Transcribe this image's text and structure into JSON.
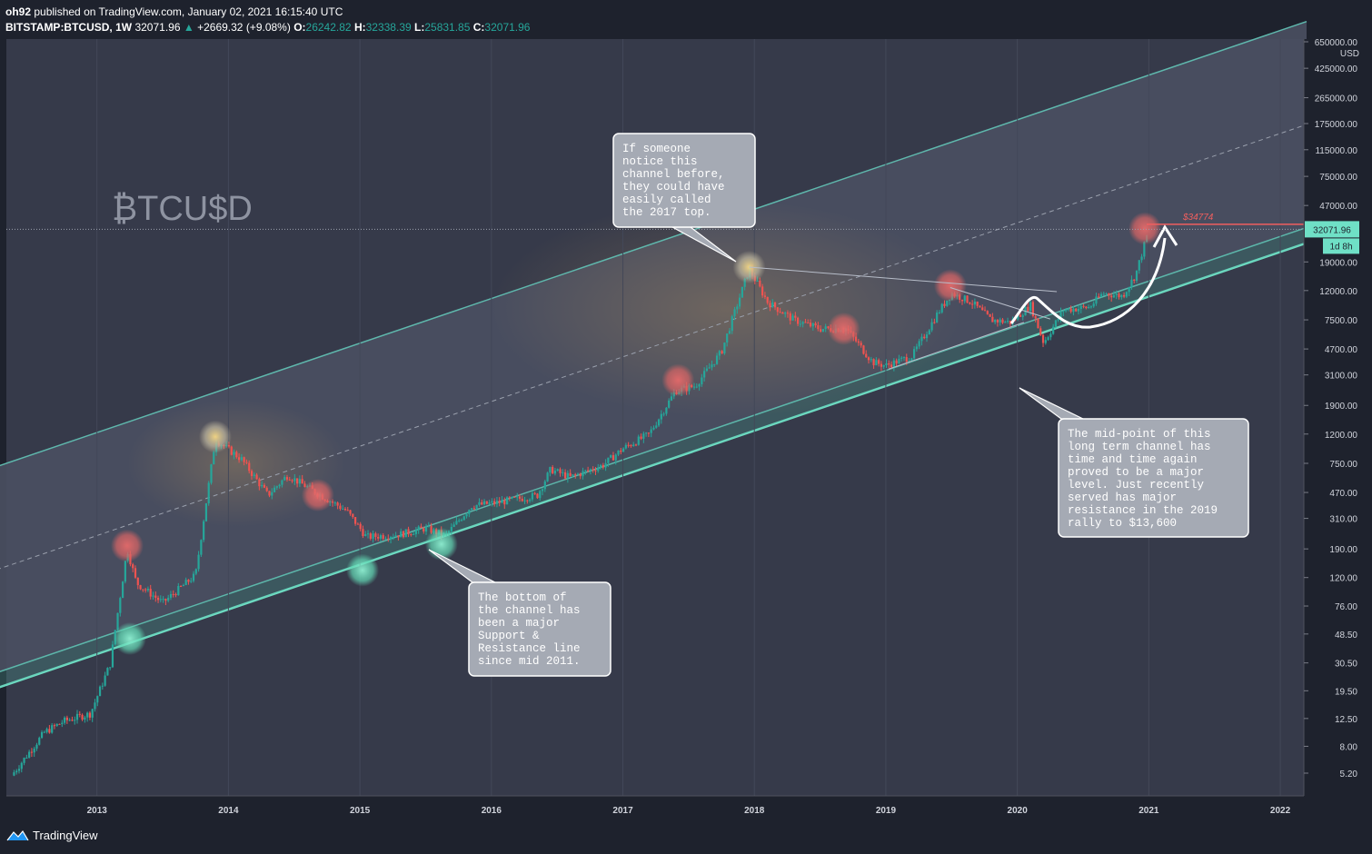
{
  "header": {
    "publisher": "oh92",
    "published_text": "published on TradingView.com, January 02, 2021 16:15:40 UTC",
    "symbol": "BITSTAMP:BTCUSD, 1W",
    "last": "32071.96",
    "change": "+2669.32 (+9.08%)",
    "open_label": "O:",
    "open": "26242.82",
    "high_label": "H:",
    "high": "32338.39",
    "low_label": "L:",
    "low": "25831.85",
    "close_label": "C:",
    "close": "32071.96"
  },
  "watermark": "BTCUSD",
  "price_axis": {
    "currency": "USD",
    "last_price_label": "32071.96",
    "countdown": "1d 8h",
    "target_label": "$34774"
  },
  "annotations": {
    "top_callout": "If someone\nnotice this\nchannel before,\nthey could have\neasily called\nthe 2017 top.",
    "bottom_callout": "The bottom of\nthe channel has\nbeen a major\nSupport &\nResistance line\nsince mid 2011.",
    "mid_callout": "The mid-point of this\nlong term channel has\ntime and time again\nproved to be a major\nlevel. Just recently\nserved has major\nresistance in the 2019\nrally to $13,600"
  },
  "footer": {
    "brand": "TradingView"
  },
  "colors": {
    "up": "#26a69a",
    "down": "#ef5350",
    "channel": "#5fb8ad",
    "bottom_line": "#6fdcc3",
    "target": "#f05f5f"
  },
  "chart_data": {
    "type": "candlestick",
    "scale": "log",
    "interval": "1W",
    "x_ticks": [
      "2013",
      "2014",
      "2015",
      "2016",
      "2017",
      "2018",
      "2019",
      "2020",
      "2021",
      "2022"
    ],
    "y_ticks": [
      5.2,
      8.0,
      12.5,
      19.5,
      30.5,
      48.5,
      76.0,
      120.0,
      190.0,
      310.0,
      470.0,
      750.0,
      1200.0,
      1900.0,
      3100.0,
      4700.0,
      7500.0,
      12000.0,
      19000.0,
      30000.0,
      47000.0,
      75000.0,
      115000.0,
      175000.0,
      265000.0,
      425000.0,
      650000.0
    ],
    "y_tick_labels": [
      "5.20",
      "8.00",
      "12.50",
      "19.50",
      "30.50",
      "48.50",
      "76.00",
      "120.00",
      "190.00",
      "310.00",
      "470.00",
      "750.00",
      "1200.00",
      "1900.00",
      "3100.00",
      "4700.00",
      "7500.00",
      "12000.00",
      "19000.00",
      "",
      "47000.00",
      "75000.00",
      "115000.00",
      "175000.00",
      "265000.00",
      "425000.00",
      "650000.00"
    ],
    "price_path": [
      [
        2012.35,
        5.0
      ],
      [
        2012.6,
        10
      ],
      [
        2012.75,
        12
      ],
      [
        2012.95,
        13.5
      ],
      [
        2013.1,
        30
      ],
      [
        2013.23,
        190
      ],
      [
        2013.3,
        110
      ],
      [
        2013.5,
        80
      ],
      [
        2013.75,
        125
      ],
      [
        2013.9,
        1100
      ],
      [
        2014.1,
        800
      ],
      [
        2014.3,
        450
      ],
      [
        2014.45,
        620
      ],
      [
        2014.7,
        450
      ],
      [
        2014.9,
        350
      ],
      [
        2015.05,
        230
      ],
      [
        2015.3,
        240
      ],
      [
        2015.5,
        265
      ],
      [
        2015.65,
        235
      ],
      [
        2015.85,
        380
      ],
      [
        2016.05,
        400
      ],
      [
        2016.35,
        450
      ],
      [
        2016.45,
        680
      ],
      [
        2016.6,
        600
      ],
      [
        2016.85,
        730
      ],
      [
        2017.0,
        950
      ],
      [
        2017.2,
        1200
      ],
      [
        2017.4,
        2400
      ],
      [
        2017.55,
        2600
      ],
      [
        2017.75,
        4500
      ],
      [
        2017.96,
        17000
      ],
      [
        2018.1,
        10000
      ],
      [
        2018.3,
        7500
      ],
      [
        2018.5,
        6500
      ],
      [
        2018.7,
        6500
      ],
      [
        2018.9,
        3800
      ],
      [
        2019.0,
        3600
      ],
      [
        2019.2,
        4200
      ],
      [
        2019.4,
        8500
      ],
      [
        2019.5,
        11500
      ],
      [
        2019.65,
        10000
      ],
      [
        2019.8,
        7500
      ],
      [
        2019.95,
        7200
      ],
      [
        2020.1,
        9500
      ],
      [
        2020.2,
        5200
      ],
      [
        2020.35,
        8800
      ],
      [
        2020.55,
        9200
      ],
      [
        2020.65,
        11500
      ],
      [
        2020.8,
        11000
      ],
      [
        2020.9,
        15500
      ],
      [
        2021.0,
        32071.96
      ]
    ],
    "channel": {
      "upper": [
        [
          2012.0,
          600
        ],
        [
          2022.2,
          900000
        ]
      ],
      "lower": [
        [
          2012.0,
          22
        ],
        [
          2022.2,
          33000
        ]
      ]
    },
    "target_price": 34774
  }
}
